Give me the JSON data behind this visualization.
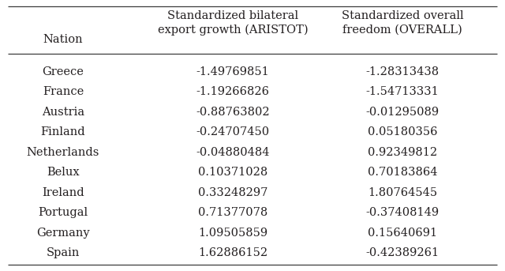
{
  "nations": [
    "Greece",
    "France",
    "Austria",
    "Finland",
    "Netherlands",
    "Belux",
    "Ireland",
    "Portugal",
    "Germany",
    "Spain"
  ],
  "aristot": [
    "-1.49769851",
    "-1.19266826",
    "-0.88763802",
    "-0.24707450",
    "-0.04880484",
    "0.10371028",
    "0.33248297",
    "0.71377078",
    "1.09505859",
    "1.62886152"
  ],
  "overall": [
    "-1.28313438",
    "-1.54713331",
    "-0.01295089",
    "0.05180356",
    "0.92349812",
    "0.70183864",
    "1.80764545",
    "-0.37408149",
    "0.15640691",
    "-0.42389261"
  ],
  "col_header_nation": "Nation",
  "col_header_aristot_line1": "Standardized bilateral",
  "col_header_aristot_line2": "export growth (ARISTOT)",
  "col_header_overall_line1": "Standardized overall",
  "col_header_overall_line2": "freedom (OVERALL)",
  "bg_color": "#ffffff",
  "text_color": "#231f20",
  "font_size": 10.5,
  "header_font_size": 10.5,
  "line_color": "#3d3d3d",
  "fig_width": 6.4,
  "fig_height": 3.43,
  "dpi": 100
}
